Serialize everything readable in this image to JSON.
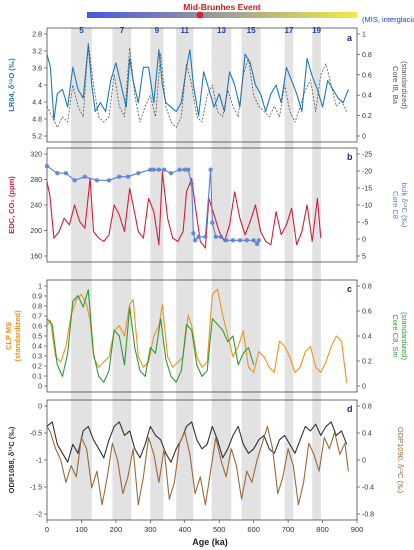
{
  "header": {
    "event_label": "Mid-Brunhes Event",
    "mis_note": "(MIS, interglacials)",
    "mis_numbers": [
      "5",
      "7",
      "9",
      "11",
      "13",
      "15",
      "17",
      "19"
    ],
    "gradient_start": "#4a55e0",
    "gradient_end": "#f2e84a",
    "event_marker_color": "#e02020"
  },
  "x_axis": {
    "label": "Age (ka)",
    "ticks": [
      0,
      100,
      200,
      300,
      400,
      500,
      600,
      700,
      800,
      900
    ],
    "lim": [
      0,
      900
    ]
  },
  "interglacial_bands": [
    [
      70,
      130
    ],
    [
      190,
      245
    ],
    [
      300,
      338
    ],
    [
      375,
      425
    ],
    [
      478,
      535
    ],
    [
      565,
      620
    ],
    [
      690,
      715
    ],
    [
      770,
      795
    ]
  ],
  "colors": {
    "lr04": "#1f7ab8",
    "core_i8_ba": "#555555",
    "edc_co2": "#d21f3c",
    "core_c8_d13c": "#5b7fd6",
    "clp_ms": "#f0921e",
    "core_c8_sm": "#2e9a3a",
    "odp1088": "#333333",
    "odp1090": "#9b6a3c",
    "shade": "#e2e2e2"
  },
  "panels": {
    "a": {
      "letter": "a",
      "left_label": "LR04, δ¹⁸O (‰)",
      "right_label": "Core I8, Ba",
      "right_label2": "(standardized)",
      "left_ticks": [
        "2.8",
        "3.2",
        "3.6",
        "4",
        "4.4",
        "4.8",
        "5.2"
      ],
      "right_ticks": [
        "1",
        "0.8",
        "0.6",
        "0.4",
        "0.2",
        "0"
      ]
    },
    "b": {
      "letter": "b",
      "left_label": "EDC, CO₂ (ppm)",
      "right_label": "Core C8",
      "right_label2": "bulk δ¹³C (‰)",
      "left_ticks": [
        "320",
        "280",
        "240",
        "200",
        "160"
      ],
      "right_ticks": [
        "-25",
        "-20",
        "-15",
        "-10",
        "-5",
        "0",
        "5"
      ]
    },
    "c": {
      "letter": "c",
      "left_label": "CLP MS",
      "left_label2": "(standardized)",
      "right_label": "Core C8, Sm",
      "right_label2": "(standardized)",
      "left_ticks": [
        "1",
        "0.9",
        "0.8",
        "0.7",
        "0.6",
        "0.5",
        "0.4",
        "0.3",
        "0.2",
        "0.1",
        "0"
      ],
      "right_ticks": [
        "0.8",
        "0.6",
        "0.4",
        "0.2",
        "0"
      ]
    },
    "d": {
      "letter": "d",
      "left_label": "ODP1088, δ¹³C (‰)",
      "right_label": "ODP1090, δ¹³C (‰)",
      "left_ticks": [
        "0",
        "-0.5",
        "-1",
        "-1.5",
        "-2"
      ],
      "right_ticks": [
        "0.8",
        "0.4",
        "0",
        "-0.4",
        "-0.8"
      ]
    }
  },
  "chart_data": [
    {
      "type": "line",
      "panel": "a",
      "series": [
        {
          "name": "LR04 δ¹⁸O",
          "axis": "left",
          "ylim": [
            5.2,
            2.8
          ],
          "x": [
            0,
            10,
            20,
            30,
            45,
            60,
            75,
            90,
            105,
            120,
            130,
            140,
            155,
            170,
            185,
            200,
            215,
            230,
            240,
            250,
            265,
            280,
            295,
            310,
            325,
            335,
            345,
            360,
            375,
            390,
            405,
            415,
            425,
            440,
            455,
            470,
            485,
            500,
            515,
            530,
            545,
            560,
            575,
            590,
            605,
            620,
            635,
            650,
            665,
            680,
            695,
            710,
            725,
            740,
            755,
            770,
            785,
            800,
            815,
            830,
            845,
            860,
            875
          ],
          "y": [
            3.3,
            3.6,
            4.8,
            4.2,
            4.1,
            4.5,
            3.6,
            4.1,
            4.3,
            3.1,
            4.0,
            4.6,
            4.4,
            4.6,
            3.9,
            3.5,
            4.0,
            4.5,
            3.4,
            3.9,
            4.4,
            3.6,
            3.6,
            4.4,
            3.2,
            4.0,
            4.4,
            4.5,
            4.6,
            4.4,
            3.6,
            3.2,
            4.0,
            4.7,
            3.7,
            4.1,
            4.5,
            4.2,
            4.6,
            3.7,
            4.0,
            4.5,
            3.3,
            3.5,
            4.0,
            4.2,
            4.6,
            4.2,
            4.0,
            4.4,
            3.6,
            3.9,
            4.2,
            4.6,
            3.4,
            3.8,
            4.1,
            4.5,
            3.9,
            4.1,
            4.3,
            4.4,
            4.1
          ]
        },
        {
          "name": "Core I8 Ba",
          "axis": "right",
          "ylim": [
            0,
            1
          ],
          "x": [
            0,
            15,
            30,
            45,
            60,
            75,
            90,
            105,
            120,
            135,
            150,
            165,
            180,
            195,
            210,
            225,
            240,
            255,
            270,
            285,
            300,
            315,
            330,
            345,
            360,
            375,
            390,
            405,
            420,
            435,
            450,
            465,
            480,
            495,
            510,
            525,
            540,
            555,
            570,
            585,
            600,
            615,
            630,
            645,
            660,
            675,
            690,
            705,
            720,
            735,
            750,
            765,
            780,
            795,
            810,
            825,
            840,
            855,
            870
          ],
          "y": [
            0.3,
            0.2,
            0.1,
            0.2,
            0.15,
            0.5,
            0.3,
            0.2,
            0.9,
            0.5,
            0.2,
            0.15,
            0.2,
            0.6,
            0.3,
            0.2,
            0.85,
            0.4,
            0.15,
            0.3,
            0.4,
            0.2,
            0.8,
            0.3,
            0.15,
            0.1,
            0.2,
            0.7,
            0.5,
            0.2,
            0.15,
            0.4,
            0.5,
            0.25,
            0.2,
            0.45,
            0.3,
            0.2,
            0.6,
            0.75,
            0.4,
            0.3,
            0.25,
            0.2,
            0.3,
            0.2,
            0.5,
            0.25,
            0.15,
            0.3,
            0.45,
            0.55,
            0.25,
            0.6,
            0.7,
            0.5,
            0.3,
            0.35,
            0.25
          ]
        }
      ]
    },
    {
      "type": "line",
      "panel": "b",
      "series": [
        {
          "name": "EDC CO₂",
          "axis": "left",
          "ylim": [
            160,
            320
          ],
          "x": [
            0,
            8,
            20,
            35,
            50,
            65,
            80,
            95,
            110,
            125,
            135,
            150,
            165,
            180,
            195,
            210,
            225,
            240,
            250,
            265,
            280,
            295,
            310,
            325,
            335,
            350,
            365,
            380,
            395,
            405,
            420,
            430,
            445,
            460,
            470,
            485,
            500,
            515,
            530,
            545,
            560,
            575,
            590,
            605,
            620,
            635,
            650,
            665,
            680,
            695,
            710,
            725,
            740,
            755,
            770,
            785,
            795
          ],
          "y": [
            275,
            255,
            190,
            200,
            220,
            210,
            240,
            215,
            205,
            280,
            200,
            190,
            185,
            195,
            240,
            225,
            200,
            265,
            240,
            200,
            190,
            250,
            230,
            180,
            290,
            220,
            190,
            185,
            200,
            260,
            280,
            240,
            185,
            175,
            250,
            225,
            200,
            185,
            210,
            260,
            220,
            195,
            215,
            240,
            200,
            185,
            180,
            230,
            195,
            210,
            235,
            180,
            200,
            240,
            185,
            250,
            190
          ]
        },
        {
          "name": "Core C8 bulk δ¹³C",
          "axis": "right",
          "ylim": [
            5,
            -25
          ],
          "markers": true,
          "x": [
            0,
            30,
            55,
            80,
            110,
            145,
            180,
            210,
            235,
            265,
            300,
            310,
            325,
            340,
            360,
            385,
            400,
            410,
            420,
            425,
            430,
            440,
            460,
            475,
            480,
            490,
            505,
            520,
            540,
            560,
            580,
            600,
            610,
            615
          ],
          "y": [
            -21,
            -19,
            -19,
            -17,
            -18,
            -17,
            -17,
            -18,
            -18,
            -19,
            -20,
            -20,
            -20,
            -20,
            -19,
            -20,
            -20,
            -20,
            -16,
            -2,
            0,
            -1,
            -1,
            -20,
            -5,
            -1,
            -1,
            0,
            0,
            0,
            0,
            0,
            1,
            0
          ]
        }
      ]
    },
    {
      "type": "line",
      "panel": "c",
      "series": [
        {
          "name": "CLP MS",
          "axis": "left",
          "ylim": [
            0,
            1
          ],
          "x": [
            0,
            10,
            25,
            40,
            55,
            70,
            85,
            100,
            115,
            125,
            135,
            150,
            165,
            180,
            195,
            210,
            225,
            240,
            250,
            265,
            280,
            295,
            310,
            325,
            335,
            350,
            365,
            380,
            395,
            410,
            420,
            435,
            450,
            465,
            480,
            495,
            510,
            525,
            540,
            555,
            570,
            585,
            600,
            615,
            630,
            645,
            660,
            675,
            690,
            705,
            720,
            735,
            750,
            765,
            780,
            795,
            810,
            825,
            840,
            855,
            870
          ],
          "y": [
            0.6,
            0.65,
            0.3,
            0.25,
            0.4,
            0.7,
            0.85,
            0.9,
            0.8,
            0.65,
            0.3,
            0.2,
            0.25,
            0.3,
            0.55,
            0.6,
            0.5,
            0.8,
            0.85,
            0.3,
            0.2,
            0.25,
            0.5,
            0.6,
            0.8,
            0.3,
            0.2,
            0.25,
            0.3,
            0.7,
            0.6,
            0.3,
            0.2,
            0.25,
            0.9,
            0.95,
            0.7,
            0.5,
            0.3,
            0.4,
            0.55,
            0.2,
            0.15,
            0.35,
            0.3,
            0.2,
            0.15,
            0.45,
            0.4,
            0.3,
            0.15,
            0.2,
            0.35,
            0.4,
            0.2,
            0.15,
            0.25,
            0.4,
            0.5,
            0.45,
            0.05
          ]
        },
        {
          "name": "Core C8 Sm",
          "axis": "right",
          "ylim": [
            0,
            0.9
          ],
          "x": [
            0,
            15,
            30,
            45,
            60,
            75,
            90,
            105,
            120,
            135,
            150,
            165,
            180,
            195,
            210,
            225,
            240,
            255,
            270,
            285,
            300,
            315,
            330,
            345,
            360,
            375,
            390,
            405,
            420,
            435,
            450,
            465,
            480,
            495,
            510,
            525,
            540,
            555,
            570,
            585,
            600
          ],
          "y": [
            0.6,
            0.55,
            0.2,
            0.1,
            0.3,
            0.75,
            0.8,
            0.7,
            0.85,
            0.3,
            0.1,
            0.05,
            0.15,
            0.5,
            0.45,
            0.2,
            0.7,
            0.35,
            0.15,
            0.1,
            0.35,
            0.3,
            0.6,
            0.25,
            0.1,
            0.05,
            0.15,
            0.55,
            0.5,
            0.2,
            0.1,
            0.15,
            0.6,
            0.55,
            0.5,
            0.4,
            0.45,
            0.2,
            0.3,
            0.35,
            0.2
          ]
        }
      ]
    },
    {
      "type": "line",
      "panel": "d",
      "series": [
        {
          "name": "ODP1088 δ¹³C",
          "axis": "left",
          "ylim": [
            -2,
            0.5
          ],
          "x": [
            0,
            15,
            30,
            45,
            60,
            75,
            90,
            105,
            120,
            135,
            150,
            165,
            180,
            195,
            210,
            225,
            240,
            255,
            270,
            285,
            300,
            315,
            330,
            345,
            360,
            375,
            390,
            405,
            420,
            435,
            450,
            465,
            480,
            495,
            510,
            525,
            540,
            555,
            570,
            585,
            600,
            615,
            630,
            645,
            660,
            675,
            690,
            705,
            720,
            735,
            750,
            765,
            780,
            795,
            810,
            825,
            840,
            855,
            870
          ],
          "y": [
            0.0,
            0.1,
            -0.4,
            -0.6,
            -0.8,
            -0.4,
            -0.6,
            -0.1,
            0.0,
            -0.3,
            -0.5,
            -0.7,
            -0.3,
            0.0,
            0.1,
            -0.2,
            -0.1,
            -0.5,
            -0.7,
            -0.4,
            0.0,
            -0.2,
            -0.3,
            -0.6,
            -0.8,
            -0.5,
            -0.3,
            0.0,
            0.1,
            -0.3,
            -0.5,
            -0.4,
            0.0,
            -0.3,
            -0.7,
            -0.5,
            -0.2,
            0.0,
            -0.4,
            -0.6,
            -0.5,
            -0.3,
            -0.2,
            -0.5,
            -0.6,
            -0.3,
            -0.2,
            -0.4,
            -0.6,
            -0.3,
            0.0,
            -0.1,
            0.05,
            -0.2,
            0.0,
            0.1,
            -0.2,
            -0.1,
            -0.4
          ]
        },
        {
          "name": "ODP1090 δ¹³C",
          "axis": "right",
          "ylim": [
            -1,
            1
          ],
          "x": [
            0,
            10,
            25,
            40,
            55,
            70,
            85,
            100,
            115,
            130,
            145,
            160,
            175,
            190,
            205,
            220,
            235,
            250,
            265,
            280,
            295,
            310,
            325,
            340,
            355,
            370,
            385,
            400,
            415,
            430,
            445,
            460,
            475,
            490,
            505,
            520,
            535,
            550,
            565,
            580,
            595,
            610,
            625,
            640,
            655,
            670,
            685,
            700,
            715,
            730,
            745,
            760,
            775,
            790,
            805,
            820,
            835,
            850,
            865,
            875
          ],
          "y": [
            0.6,
            0.5,
            0.2,
            0.0,
            -0.4,
            -0.1,
            -0.3,
            0.4,
            0.2,
            -0.5,
            -0.2,
            -0.8,
            -0.3,
            0.3,
            0.0,
            -0.6,
            -0.3,
            0.2,
            -0.8,
            -0.3,
            0.4,
            0.1,
            -0.4,
            0.2,
            -0.7,
            -0.4,
            0.3,
            0.5,
            0.1,
            -0.6,
            -0.3,
            -0.8,
            -0.2,
            0.4,
            0.0,
            -0.3,
            0.2,
            -0.1,
            -0.7,
            -0.2,
            -0.4,
            0.0,
            0.3,
            0.6,
            0.2,
            -0.6,
            -0.3,
            0.2,
            -0.1,
            -0.8,
            -0.4,
            0.3,
            0.1,
            -0.2,
            0.4,
            0.2,
            0.5,
            0.1,
            0.3,
            -0.2
          ]
        }
      ]
    }
  ]
}
